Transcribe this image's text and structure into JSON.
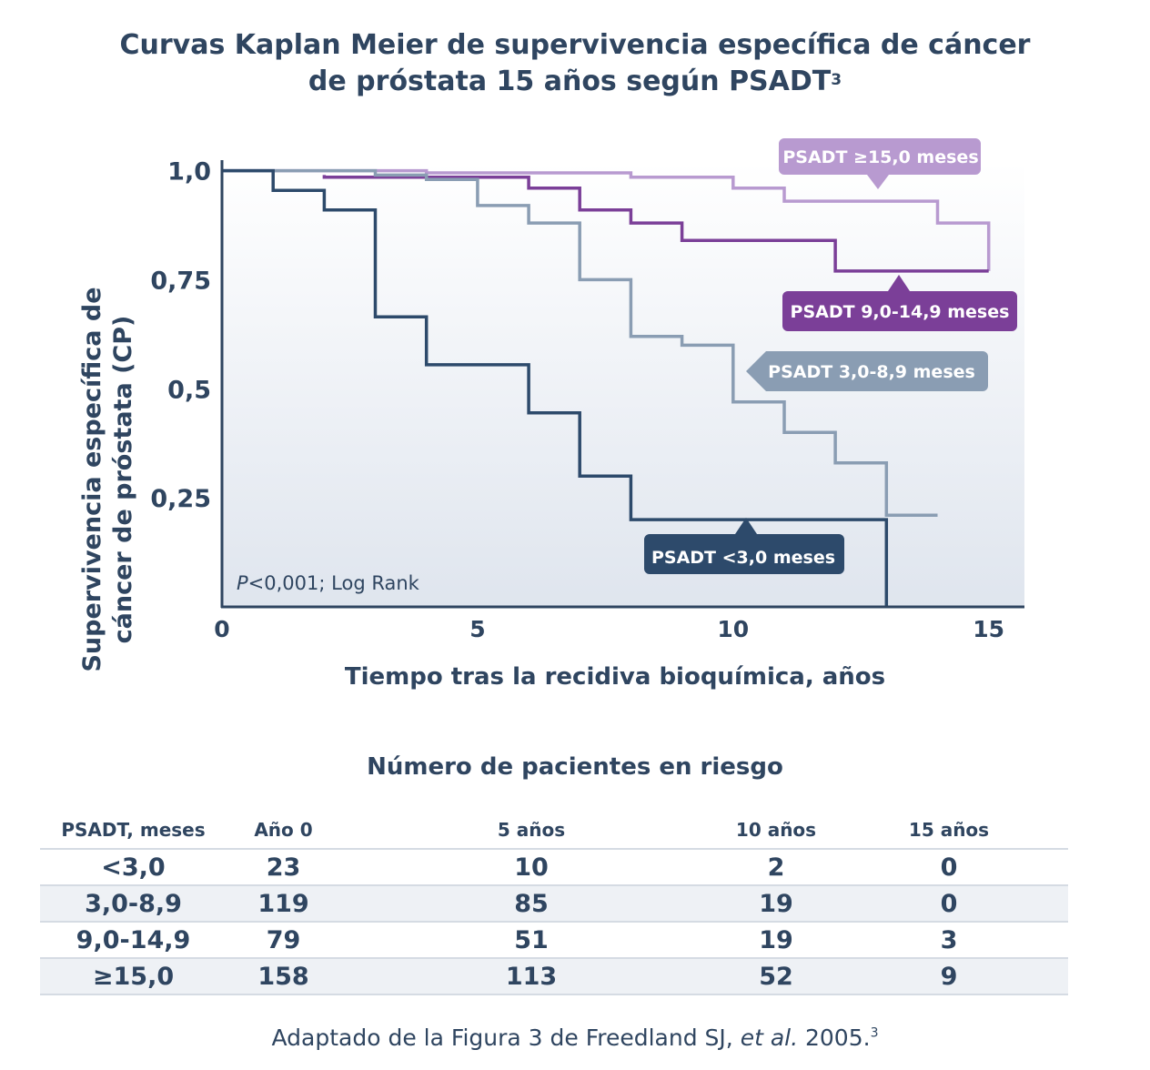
{
  "title_line1": "Curvas Kaplan Meier de supervivencia específica de cáncer",
  "title_line2": "de próstata 15 años según PSADT",
  "title_sup": "3",
  "chart_data": {
    "type": "line",
    "step": true,
    "xlabel": "Tiempo tras la recidiva bioquímica, años",
    "ylabel_line1": "Supervivencia específica de",
    "ylabel_line2": "cáncer de próstata (CP)",
    "xlim": [
      0,
      15.7
    ],
    "ylim": [
      0,
      1.02
    ],
    "x_ticks": [
      0,
      5,
      10,
      15
    ],
    "x_tick_labels": [
      "0",
      "5",
      "10",
      "15"
    ],
    "y_ticks": [
      1.0,
      0.75,
      0.5,
      0.25
    ],
    "y_tick_labels": [
      "1,0",
      "0,75",
      "0,5",
      "0,25"
    ],
    "annotation_p": "P",
    "annotation_rest": "<0,001; Log Rank",
    "series": [
      {
        "name": "PSADT ≥15,0 meses",
        "color": "#b89ad0",
        "points": [
          [
            0,
            1.0
          ],
          [
            4,
            1.0
          ],
          [
            4,
            0.995
          ],
          [
            8,
            0.995
          ],
          [
            8,
            0.985
          ],
          [
            10,
            0.985
          ],
          [
            10,
            0.96
          ],
          [
            11,
            0.96
          ],
          [
            11,
            0.93
          ],
          [
            14,
            0.93
          ],
          [
            14,
            0.88
          ],
          [
            15,
            0.88
          ],
          [
            15,
            0.77
          ]
        ]
      },
      {
        "name": "PSADT 9,0-14,9 meses",
        "color": "#7b3f98",
        "points": [
          [
            2,
            0.99
          ],
          [
            2,
            0.985
          ],
          [
            6,
            0.985
          ],
          [
            6,
            0.96
          ],
          [
            7,
            0.96
          ],
          [
            7,
            0.91
          ],
          [
            8,
            0.91
          ],
          [
            8,
            0.88
          ],
          [
            9,
            0.88
          ],
          [
            9,
            0.84
          ],
          [
            12,
            0.84
          ],
          [
            12,
            0.77
          ],
          [
            15,
            0.77
          ]
        ]
      },
      {
        "name": "PSADT 3,0-8,9 meses",
        "color": "#8a9db3",
        "points": [
          [
            0,
            1.0
          ],
          [
            3,
            1.0
          ],
          [
            3,
            0.99
          ],
          [
            4,
            0.99
          ],
          [
            4,
            0.98
          ],
          [
            5,
            0.98
          ],
          [
            5,
            0.92
          ],
          [
            6,
            0.92
          ],
          [
            6,
            0.88
          ],
          [
            7,
            0.88
          ],
          [
            7,
            0.75
          ],
          [
            8,
            0.75
          ],
          [
            8,
            0.62
          ],
          [
            9,
            0.62
          ],
          [
            9,
            0.6
          ],
          [
            10,
            0.6
          ],
          [
            10,
            0.47
          ],
          [
            11,
            0.47
          ],
          [
            11,
            0.4
          ],
          [
            12,
            0.4
          ],
          [
            12,
            0.33
          ],
          [
            13,
            0.33
          ],
          [
            13,
            0.21
          ],
          [
            14,
            0.21
          ]
        ]
      },
      {
        "name": "PSADT <3,0 meses",
        "color": "#2d4a6b",
        "points": [
          [
            0,
            1.0
          ],
          [
            1,
            1.0
          ],
          [
            1,
            0.955
          ],
          [
            2,
            0.955
          ],
          [
            2,
            0.91
          ],
          [
            3,
            0.91
          ],
          [
            3,
            0.665
          ],
          [
            4,
            0.665
          ],
          [
            4,
            0.555
          ],
          [
            6,
            0.555
          ],
          [
            6,
            0.445
          ],
          [
            7,
            0.445
          ],
          [
            7,
            0.3
          ],
          [
            8,
            0.3
          ],
          [
            8,
            0.2
          ],
          [
            13,
            0.2
          ],
          [
            13,
            0.0
          ]
        ]
      }
    ],
    "callouts": [
      {
        "label": "PSADT ≥15,0 meses",
        "bg": "#b89ad0"
      },
      {
        "label": "PSADT 9,0-14,9 meses",
        "bg": "#7b3f98"
      },
      {
        "label": "PSADT 3,0-8,9 meses",
        "bg": "#8a9db3"
      },
      {
        "label": "PSADT <3,0 meses",
        "bg": "#2d4a6b"
      }
    ]
  },
  "risk_table": {
    "title": "Número de pacientes en riesgo",
    "headers": [
      "PSADT, meses",
      "Año 0",
      "5 años",
      "10 años",
      "15 años"
    ],
    "rows": [
      [
        "<3,0",
        "23",
        "10",
        "2",
        "0"
      ],
      [
        "3,0-8,9",
        "119",
        "85",
        "19",
        "0"
      ],
      [
        "9,0-14,9",
        "79",
        "51",
        "19",
        "3"
      ],
      [
        "≥15,0",
        "158",
        "113",
        "52",
        "9"
      ]
    ]
  },
  "source_text": "Adaptado de la Figura 3 de Freedland SJ, ",
  "source_etal": "et al.",
  "source_year": " 2005.",
  "source_sup": "3"
}
